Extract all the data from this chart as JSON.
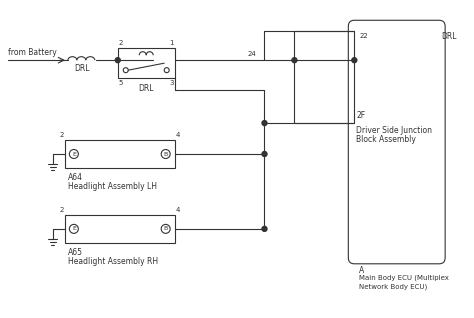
{
  "bg_color": "#ffffff",
  "line_color": "#333333",
  "text_color": "#333333",
  "fig_width": 4.74,
  "fig_height": 3.18,
  "labels": {
    "from_battery": "from Battery",
    "drl_fuse": "DRL",
    "relay_label": "DRL",
    "pin2": "2",
    "pin1": "1",
    "pin5": "5",
    "pin3": "3",
    "pin24": "24",
    "pin22": "22",
    "drl_right": "DRL",
    "label_2F": "2F",
    "driver_side_line1": "Driver Side Junction",
    "driver_side_line2": "Block Assembly",
    "label_A": "A",
    "main_body_line1": "Main Body ECU (Multiplex",
    "main_body_line2": "Network Body ECU)",
    "a64_pin2": "2",
    "a64_pin4": "4",
    "a64_E": "E",
    "a64_B": "B",
    "a64_label": "A64",
    "a64_name": "Headlight Assembly LH",
    "a65_pin2": "2",
    "a65_pin4": "4",
    "a65_E": "E",
    "a65_B": "B",
    "a65_label": "A65",
    "a65_name": "Headlight Assembly RH"
  }
}
